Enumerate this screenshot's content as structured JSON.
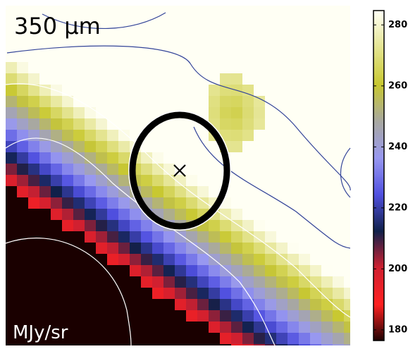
{
  "chart_data": {
    "type": "image",
    "title": "350 μm",
    "colorbar": {
      "label": "MJy/sr",
      "lim": [
        176.5,
        284.7
      ],
      "ticks": [
        180,
        200,
        220,
        240,
        260,
        280
      ],
      "colors": [
        "#1a0000",
        "#ff2020",
        "#d02030",
        "#10204a",
        "#5050e0",
        "#9898f0",
        "#a8a8a0",
        "#c8c830",
        "#e4e490",
        "#fffff4"
      ]
    }
  }
}
